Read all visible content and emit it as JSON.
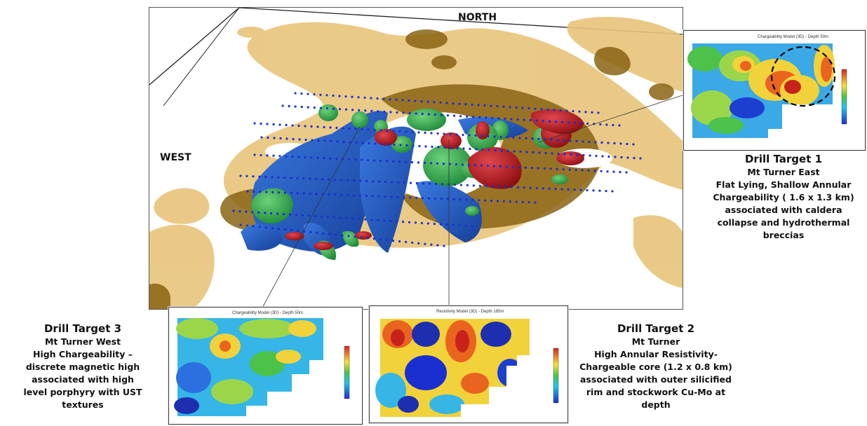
{
  "main_view": {
    "label_north": "NORTH",
    "label_west": "WEST"
  },
  "panel_target1": {
    "title": "Chargeability Model (3D) - Depth 50m"
  },
  "panel_target3": {
    "title": "Chargeability Model (3D) - Depth 50m"
  },
  "panel_target2": {
    "title": "Resistivity Model (3D) - Depth 185m"
  },
  "target1": {
    "title": "Drill Target 1",
    "lines": [
      "Mt Turner East",
      "Flat Lying, Shallow Annular",
      "Chargeability ( 1.6 x 1.3 km)",
      "associated with caldera",
      "collapse and hydrothermal",
      "breccias"
    ]
  },
  "target2": {
    "title": "Drill Target 2",
    "lines": [
      "Mt Turner",
      "High Annular Resistivity-",
      "Chargeable core (1.2 x 0.8 km)",
      "associated with outer silicified",
      "rim and stockwork Cu-Mo at",
      "depth"
    ]
  },
  "target3": {
    "title": "Drill Target 3",
    "lines": [
      "Mt Turner West",
      "High  Chargeability –",
      "discrete magnetic high",
      "associated with high",
      "level porphyry with UST",
      "textures"
    ]
  },
  "colors": {
    "mag_light": "#e8c47a",
    "mag_dark": "#8a6414",
    "resistivity_blue": "#1f5fc4",
    "chargeability_green": "#2fa84a",
    "chargeability_red": "#c0141c",
    "survey_dots": "#1a2fd0"
  }
}
